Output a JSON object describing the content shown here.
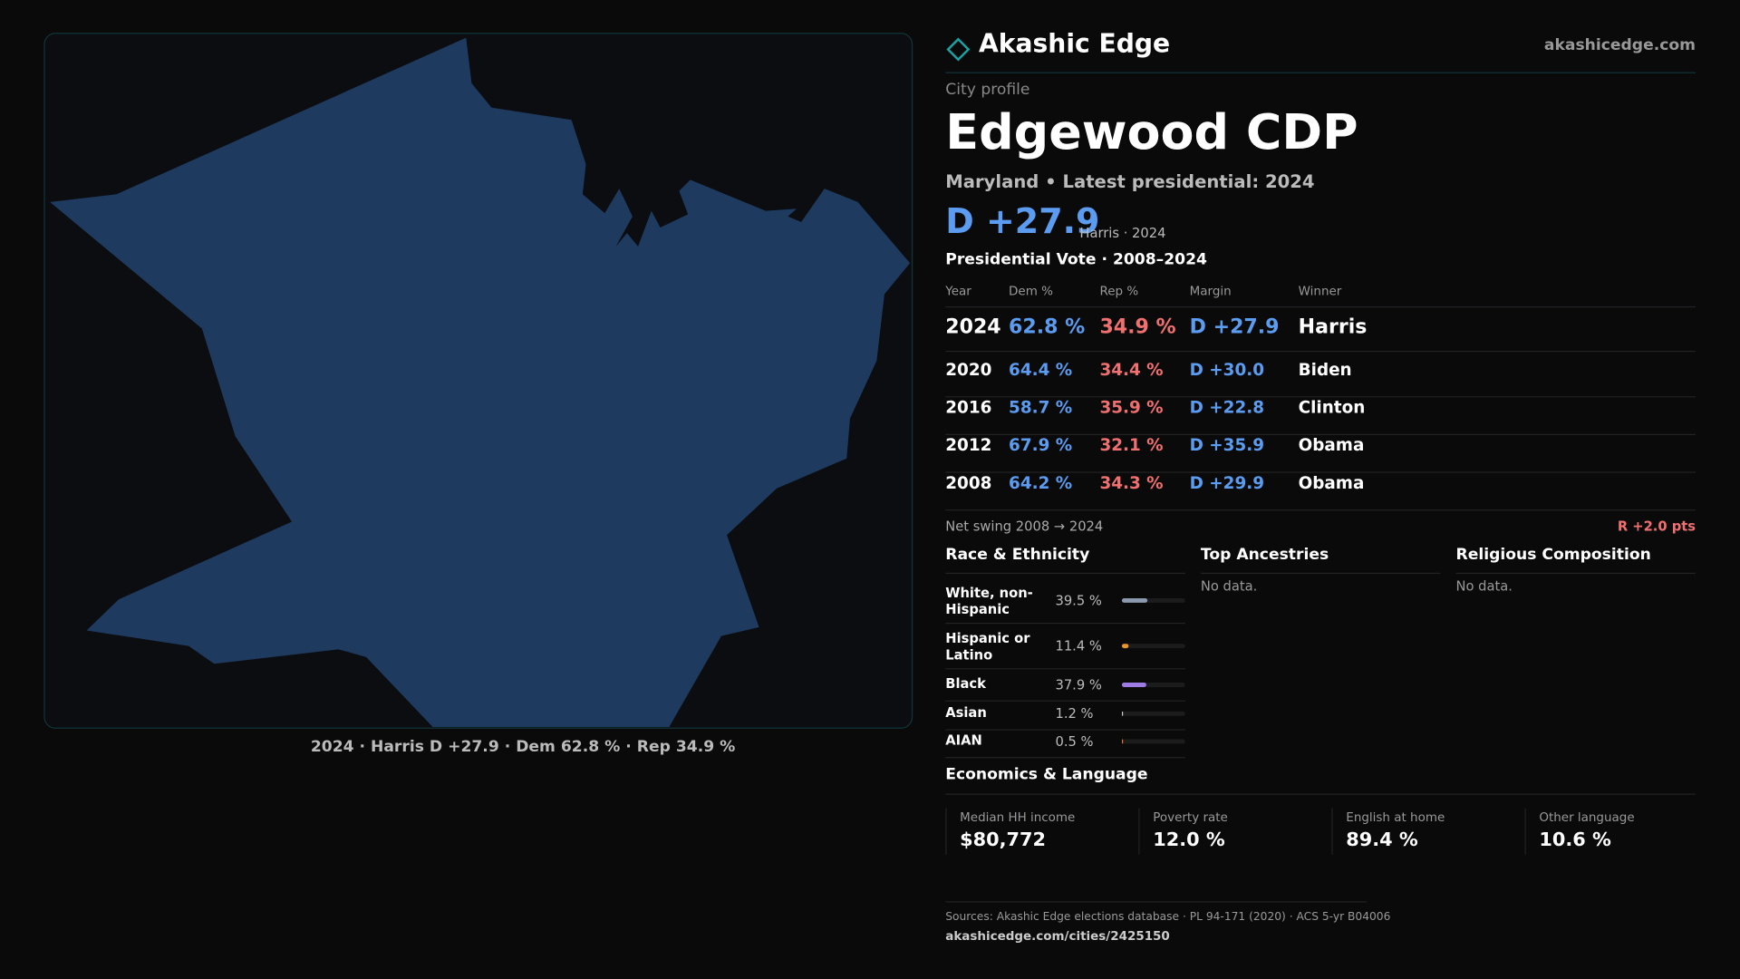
{
  "header": {
    "brand": "Akashic Edge",
    "site": "akashicedge.com"
  },
  "profile": {
    "kicker": "City profile",
    "title": "Edgewood CDP",
    "subtitle": "Maryland • Latest presidential: 2024",
    "margin": "D +27.9",
    "margin_note": "Harris · 2024"
  },
  "map_caption": "2024 · Harris D +27.9 · Dem 62.8 % · Rep 34.9 %",
  "vote_table": {
    "title": "Presidential Vote · 2008–2024",
    "columns": [
      "Year",
      "Dem %",
      "Rep %",
      "Margin",
      "Winner"
    ],
    "rows": [
      [
        "2024",
        "62.8 %",
        "34.9 %",
        "D +27.9",
        "Harris"
      ],
      [
        "2020",
        "64.4 %",
        "34.4 %",
        "D +30.0",
        "Biden"
      ],
      [
        "2016",
        "58.7 %",
        "35.9 %",
        "D +22.8",
        "Clinton"
      ],
      [
        "2012",
        "67.9 %",
        "32.1 %",
        "D +35.9",
        "Obama"
      ],
      [
        "2008",
        "64.2 %",
        "34.3 %",
        "D +29.9",
        "Obama"
      ]
    ]
  },
  "swing": {
    "label": "Net swing 2008 → 2024",
    "value": "R +2.0 pts"
  },
  "race": {
    "title": "Race & Ethnicity",
    "xlim": [
      0,
      100
    ],
    "rows": [
      {
        "label": "White, non-Hispanic",
        "value": 39.5,
        "value_label": "39.5 %",
        "color": "#8c9ab0"
      },
      {
        "label": "Hispanic or Latino",
        "value": 11.4,
        "value_label": "11.4 %",
        "color": "#e8952c"
      },
      {
        "label": "Black",
        "value": 37.9,
        "value_label": "37.9 %",
        "color": "#9d7ce6"
      },
      {
        "label": "Asian",
        "value": 1.2,
        "value_label": "1.2 %",
        "color": "#c8c8c8"
      },
      {
        "label": "AIAN",
        "value": 0.5,
        "value_label": "0.5 %",
        "color": "#e0703a"
      }
    ]
  },
  "ancestries": {
    "title": "Top Ancestries",
    "empty": "No data."
  },
  "religion": {
    "title": "Religious Composition",
    "empty": "No data."
  },
  "economics": {
    "title": "Economics & Language",
    "stats": [
      {
        "label": "Median HH income",
        "value": "$80,772"
      },
      {
        "label": "Poverty rate",
        "value": "12.0 %"
      },
      {
        "label": "English at home",
        "value": "89.4 %"
      },
      {
        "label": "Other language",
        "value": "10.6 %"
      }
    ]
  },
  "footer": {
    "sources": "Sources: Akashic Edge elections database · PL 94-171 (2020) · ACS 5-yr B04006",
    "url": "akashicedge.com/cities/2425150"
  }
}
